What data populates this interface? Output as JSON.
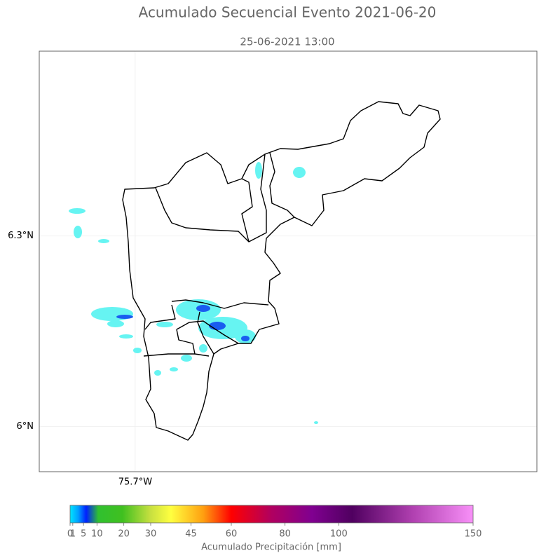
{
  "title": "Acumulado Secuencial Evento 2021-06-20",
  "subtitle": "25-06-2021 13:00",
  "map": {
    "xlim": [
      -75.851,
      -75.068
    ],
    "ylim": [
      5.929,
      6.591
    ],
    "xticks": [
      {
        "value": -75.7,
        "label": "75.7°W"
      }
    ],
    "yticks": [
      {
        "value": 6.3,
        "label": "6.3°N"
      },
      {
        "value": 6,
        "label": "6°N"
      }
    ]
  },
  "colorbar": {
    "label": "Acumulado Precipitación [mm]",
    "lim": [
      0,
      150
    ],
    "ticks": [
      0,
      1,
      5,
      10,
      20,
      30,
      45,
      60,
      80,
      100,
      150
    ]
  }
}
